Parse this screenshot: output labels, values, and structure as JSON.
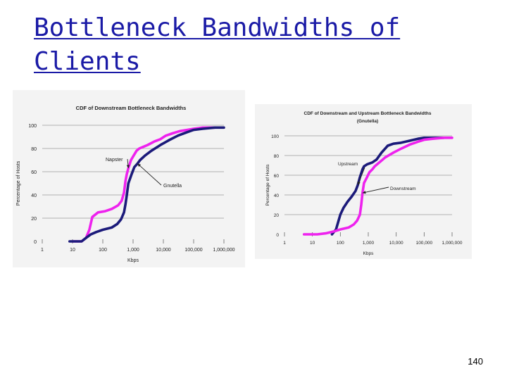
{
  "slide": {
    "title_line1": "Bottleneck Bandwidths of",
    "title_line2": "Clients",
    "page_number": "140"
  },
  "colors": {
    "title": "#1a1aa6",
    "navy_series": "#1b1a7a",
    "magenta_series": "#ee22ee",
    "chart_background": "#f3f3f3",
    "grid": "#9a9a9a"
  },
  "chart_data": [
    {
      "type": "line",
      "title": "CDF of Downstream Bottleneck Bandwidths",
      "xlabel": "Kbps",
      "ylabel": "Percentage of Hosts",
      "xscale": "log",
      "xlim": [
        1,
        1000000
      ],
      "ylim": [
        0,
        100
      ],
      "x_ticks": [
        1,
        10,
        100,
        1000,
        10000,
        100000,
        1000000
      ],
      "x_tick_labels": [
        "1",
        "10",
        "100",
        "1,000",
        "10,000",
        "100,000",
        "1,000,000"
      ],
      "y_ticks": [
        0,
        20,
        40,
        60,
        80,
        100
      ],
      "y_tick_labels": [
        "0",
        "20",
        "40",
        "60",
        "80",
        "100"
      ],
      "grid": "horizontal",
      "annotations": [
        {
          "text": "Napster",
          "series": "Napster"
        },
        {
          "text": "Gnutella",
          "series": "Gnutella"
        }
      ],
      "series": [
        {
          "name": "Napster",
          "color": "#ee22ee",
          "x": [
            10,
            20,
            28,
            36,
            45,
            70,
            120,
            200,
            320,
            420,
            500,
            560,
            620,
            700,
            850,
            1050,
            1300,
            1600,
            2000,
            3000,
            5000,
            8000,
            12000,
            20000,
            35000,
            60000,
            100000,
            200000,
            500000
          ],
          "y": [
            0,
            0,
            3,
            10,
            21,
            25,
            26,
            28,
            31,
            35,
            42,
            52,
            58,
            63,
            70,
            74,
            78,
            80,
            81,
            83,
            86,
            88,
            91,
            93,
            95,
            96,
            97,
            98,
            98
          ]
        },
        {
          "name": "Gnutella",
          "color": "#1b1a7a",
          "x": [
            8,
            20,
            28,
            40,
            60,
            100,
            200,
            300,
            400,
            500,
            560,
            620,
            700,
            900,
            1100,
            1400,
            1700,
            2500,
            4000,
            8000,
            15000,
            30000,
            60000,
            100000,
            200000,
            500000,
            1000000
          ],
          "y": [
            0,
            0,
            3,
            6,
            8,
            10,
            12,
            15,
            19,
            25,
            32,
            40,
            50,
            58,
            64,
            67,
            70,
            74,
            78,
            83,
            87,
            91,
            94,
            96,
            97,
            98,
            98
          ]
        }
      ]
    },
    {
      "type": "line",
      "title": "CDF of Downstream and Upstream Bottleneck Bandwidths",
      "subtitle": "(Gnutella)",
      "xlabel": "Kbps",
      "ylabel": "Percentage of Hosts",
      "xscale": "log",
      "xlim": [
        1,
        1000000
      ],
      "ylim": [
        0,
        100
      ],
      "x_ticks": [
        1,
        10,
        100,
        1000,
        10000,
        100000,
        1000000
      ],
      "x_tick_labels": [
        "1",
        "10",
        "100",
        "1,000",
        "10,000",
        "100,000",
        "1,000,000"
      ],
      "y_ticks": [
        0,
        20,
        40,
        60,
        80,
        100
      ],
      "y_tick_labels": [
        "0",
        "20",
        "40",
        "60",
        "80",
        "100"
      ],
      "grid": "horizontal",
      "annotations": [
        {
          "text": "Upstream",
          "series": "Upstream"
        },
        {
          "text": "Downstream",
          "series": "Downstream"
        }
      ],
      "series": [
        {
          "name": "Upstream",
          "color": "#1b1a7a",
          "x": [
            50,
            70,
            100,
            130,
            180,
            250,
            350,
            420,
            500,
            560,
            620,
            700,
            900,
            1400,
            2000,
            3000,
            5000,
            8000,
            15000,
            30000,
            60000,
            100000,
            200000,
            500000
          ],
          "y": [
            0,
            5,
            20,
            27,
            33,
            38,
            44,
            50,
            58,
            62,
            66,
            69,
            71,
            73,
            76,
            83,
            90,
            92,
            93,
            95,
            97,
            98,
            98,
            98
          ]
        },
        {
          "name": "Downstream",
          "color": "#ee22ee",
          "x": [
            5,
            15,
            30,
            60,
            100,
            200,
            300,
            400,
            500,
            560,
            620,
            700,
            900,
            1100,
            1400,
            1700,
            2500,
            4000,
            8000,
            15000,
            30000,
            60000,
            100000,
            200000,
            500000,
            1000000
          ],
          "y": [
            0,
            0,
            1,
            3,
            5,
            7,
            10,
            14,
            20,
            30,
            42,
            52,
            58,
            63,
            66,
            69,
            73,
            78,
            83,
            87,
            91,
            94,
            96,
            97,
            98,
            98
          ]
        }
      ]
    }
  ]
}
